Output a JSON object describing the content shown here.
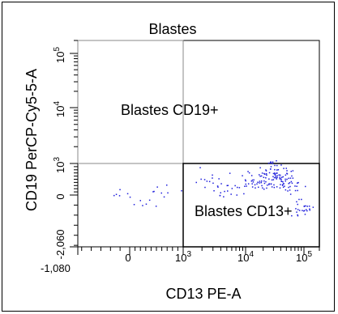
{
  "chart_data": {
    "type": "scatter",
    "title": "Blastes",
    "xlabel": "CD13 PE-A",
    "ylabel": "CD19 PerCP-Cy5-5-A",
    "x_scale": "biexponential",
    "y_scale": "biexponential",
    "xlim": [
      -1080,
      200000
    ],
    "ylim": [
      -2060,
      200000
    ],
    "x_ticks": [
      {
        "label": "-1,080",
        "value": -1080
      },
      {
        "label": "0",
        "value": 0
      },
      {
        "label": "10",
        "sup": "3",
        "value": 1000
      },
      {
        "label": "10",
        "sup": "4",
        "value": 10000
      },
      {
        "label": "10",
        "sup": "5",
        "value": 100000
      }
    ],
    "y_ticks": [
      {
        "label": "-2,060",
        "value": -2060
      },
      {
        "label": "0",
        "value": 0
      },
      {
        "label": "10",
        "sup": "3",
        "value": 1000
      },
      {
        "label": "10",
        "sup": "4",
        "value": 10000
      },
      {
        "label": "10",
        "sup": "5",
        "value": 100000
      }
    ],
    "gates": [
      {
        "name": "Blastes CD19+",
        "x_range": [
          -1080,
          1000
        ],
        "y_range": [
          1000,
          200000
        ],
        "line_color": "#888888"
      },
      {
        "name": "Blastes CD13+",
        "x_range": [
          1000,
          200000
        ],
        "y_range": [
          -2060,
          1000
        ],
        "line_color": "#000000"
      }
    ],
    "point_color": "#1f1fdc",
    "series": [
      {
        "x": [
          -200,
          300,
          600,
          2000,
          5000,
          15000,
          30000,
          50000,
          80000
        ],
        "y": [
          100,
          -300,
          200,
          400,
          300,
          500,
          700,
          400,
          -500
        ]
      }
    ]
  }
}
